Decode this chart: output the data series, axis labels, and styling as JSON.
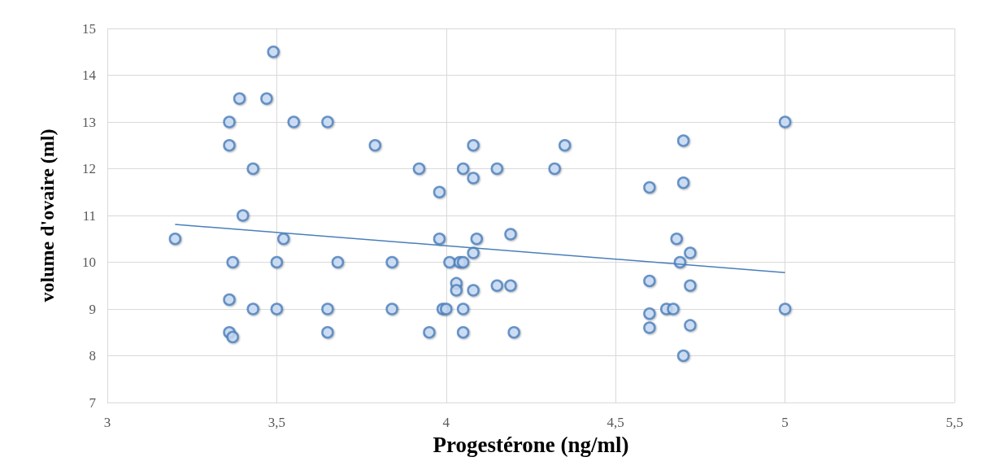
{
  "chart_data": {
    "type": "scatter",
    "xlabel": "Progestérone (ng/ml)",
    "ylabel": "volume d'ovaire (ml)",
    "xlim": [
      3,
      5.5
    ],
    "xticks": [
      3,
      {
        "value": 3.5,
        "label": "3,5"
      },
      4,
      {
        "value": 4.5,
        "label": "4,5"
      },
      5,
      {
        "value": 5.5,
        "label": "5,5"
      }
    ],
    "ylim": [
      7,
      15
    ],
    "yticks": [
      7,
      8,
      9,
      10,
      11,
      12,
      13,
      14,
      15
    ],
    "grid": true,
    "series": [
      {
        "color": "#4a7ebb",
        "marker": "circle",
        "x": [
          3.2,
          3.36,
          3.36,
          3.43,
          3.4,
          3.37,
          3.36,
          3.36,
          3.37,
          3.43,
          3.39,
          3.47,
          3.49,
          3.55,
          3.52,
          3.5,
          3.5,
          3.65,
          3.65,
          3.65,
          3.68,
          3.79,
          3.84,
          3.84,
          3.92,
          3.98,
          3.98,
          3.95,
          3.99,
          4.0,
          4.01,
          4.03,
          4.03,
          4.04,
          4.05,
          4.05,
          4.05,
          4.05,
          4.08,
          4.08,
          4.09,
          4.08,
          4.08,
          4.15,
          4.15,
          4.19,
          4.19,
          4.2,
          4.32,
          4.35,
          4.6,
          4.6,
          4.6,
          4.6,
          4.65,
          4.67,
          4.68,
          4.69,
          4.7,
          4.7,
          4.7,
          4.72,
          4.72,
          4.72,
          5.0,
          5.0
        ],
        "values": [
          10.5,
          13,
          12.5,
          12,
          11,
          10,
          9.2,
          8.5,
          8.4,
          9,
          13.5,
          13.5,
          14.5,
          13,
          10.5,
          10,
          9,
          13,
          9,
          8.5,
          10,
          12.5,
          10,
          9,
          12,
          11.5,
          10.5,
          8.5,
          9,
          9,
          10,
          9.55,
          9.4,
          10,
          10,
          12,
          9,
          8.5,
          12.5,
          11.8,
          10.5,
          10.2,
          9.4,
          12,
          9.5,
          10.6,
          9.5,
          8.5,
          12,
          12.5,
          11.6,
          9.6,
          8.9,
          8.6,
          9,
          9,
          10.5,
          10,
          12.6,
          11.7,
          8.0,
          10.2,
          9.5,
          8.65,
          13,
          9
        ]
      },
      {
        "type": "line",
        "marker": "none",
        "color": "#4a7ebb",
        "x": [
          3.2,
          5.0
        ],
        "values": [
          10.81,
          9.78
        ]
      }
    ]
  }
}
